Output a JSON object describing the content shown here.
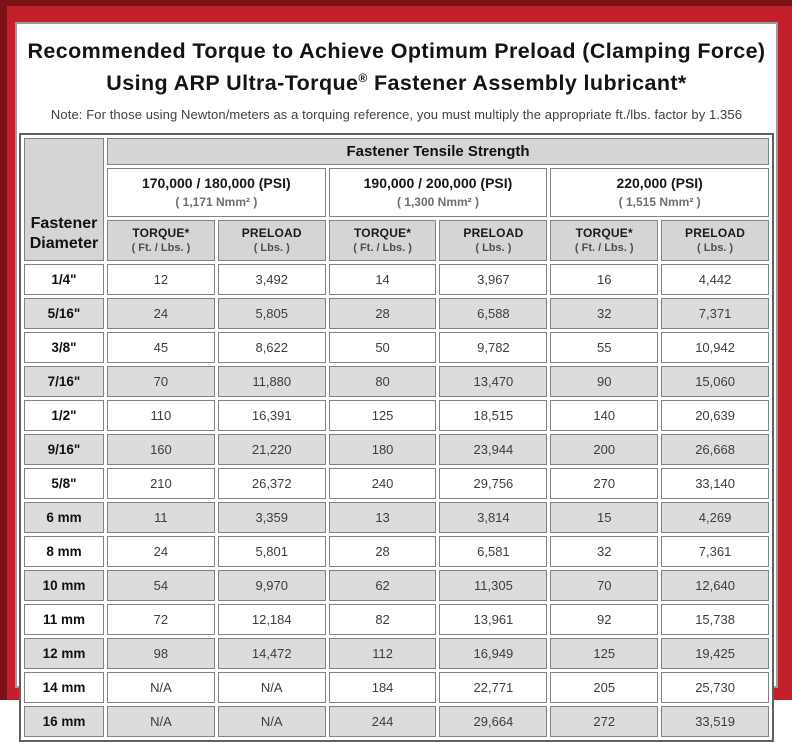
{
  "header": {
    "title_line1": "Recommended Torque to Achieve Optimum Preload (Clamping Force)",
    "title_line2_a": "Using ARP Ultra-Torque",
    "title_line2_reg": "®",
    "title_line2_b": " Fastener Assembly lubricant*",
    "note": "Note: For those using Newton/meters as a torquing reference, you must multiply the appropriate ft./lbs. factor by 1.356"
  },
  "table": {
    "corner_header_line1": "Fastener",
    "corner_header_line2": "Diameter",
    "main_header": "Fastener Tensile Strength",
    "strength_groups": [
      {
        "psi": "170,000 / 180,000 (PSI)",
        "nmm": "( 1,171 Nmm² )"
      },
      {
        "psi": "190,000 / 200,000 (PSI)",
        "nmm": "( 1,300 Nmm² )"
      },
      {
        "psi": "220,000 (PSI)",
        "nmm": "( 1,515 Nmm² )"
      }
    ],
    "column_headers": [
      {
        "line1": "TORQUE*",
        "line2": "( Ft. / Lbs. )"
      },
      {
        "line1": "PRELOAD",
        "line2": "( Lbs. )"
      },
      {
        "line1": "TORQUE*",
        "line2": "( Ft. / Lbs. )"
      },
      {
        "line1": "PRELOAD",
        "line2": "( Lbs. )"
      },
      {
        "line1": "TORQUE*",
        "line2": "( Ft. / Lbs. )"
      },
      {
        "line1": "PRELOAD",
        "line2": "( Lbs. )"
      }
    ],
    "rows": [
      {
        "diameter": "1/4\"",
        "values": [
          "12",
          "3,492",
          "14",
          "3,967",
          "16",
          "4,442"
        ]
      },
      {
        "diameter": "5/16\"",
        "values": [
          "24",
          "5,805",
          "28",
          "6,588",
          "32",
          "7,371"
        ]
      },
      {
        "diameter": "3/8\"",
        "values": [
          "45",
          "8,622",
          "50",
          "9,782",
          "55",
          "10,942"
        ]
      },
      {
        "diameter": "7/16\"",
        "values": [
          "70",
          "11,880",
          "80",
          "13,470",
          "90",
          "15,060"
        ]
      },
      {
        "diameter": "1/2\"",
        "values": [
          "110",
          "16,391",
          "125",
          "18,515",
          "140",
          "20,639"
        ]
      },
      {
        "diameter": "9/16\"",
        "values": [
          "160",
          "21,220",
          "180",
          "23,944",
          "200",
          "26,668"
        ]
      },
      {
        "diameter": "5/8\"",
        "values": [
          "210",
          "26,372",
          "240",
          "29,756",
          "270",
          "33,140"
        ]
      },
      {
        "diameter": "6 mm",
        "values": [
          "11",
          "3,359",
          "13",
          "3,814",
          "15",
          "4,269"
        ]
      },
      {
        "diameter": "8 mm",
        "values": [
          "24",
          "5,801",
          "28",
          "6,581",
          "32",
          "7,361"
        ]
      },
      {
        "diameter": "10 mm",
        "values": [
          "54",
          "9,970",
          "62",
          "11,305",
          "70",
          "12,640"
        ]
      },
      {
        "diameter": "11 mm",
        "values": [
          "72",
          "12,184",
          "82",
          "13,961",
          "92",
          "15,738"
        ]
      },
      {
        "diameter": "12 mm",
        "values": [
          "98",
          "14,472",
          "112",
          "16,949",
          "125",
          "19,425"
        ]
      },
      {
        "diameter": "14 mm",
        "values": [
          "N/A",
          "N/A",
          "184",
          "22,771",
          "205",
          "25,730"
        ]
      },
      {
        "diameter": "16 mm",
        "values": [
          "N/A",
          "N/A",
          "244",
          "29,664",
          "272",
          "33,519"
        ]
      }
    ]
  },
  "colors": {
    "frame_red": "#c2212b",
    "frame_dark_red": "#7c1117",
    "panel_border_gray": "#9b9b9b",
    "header_gray": "#d5d5d5",
    "row_shaded_gray": "#dcdcdc",
    "cell_border_gray": "#838383",
    "table_border_gray": "#5f6062"
  }
}
